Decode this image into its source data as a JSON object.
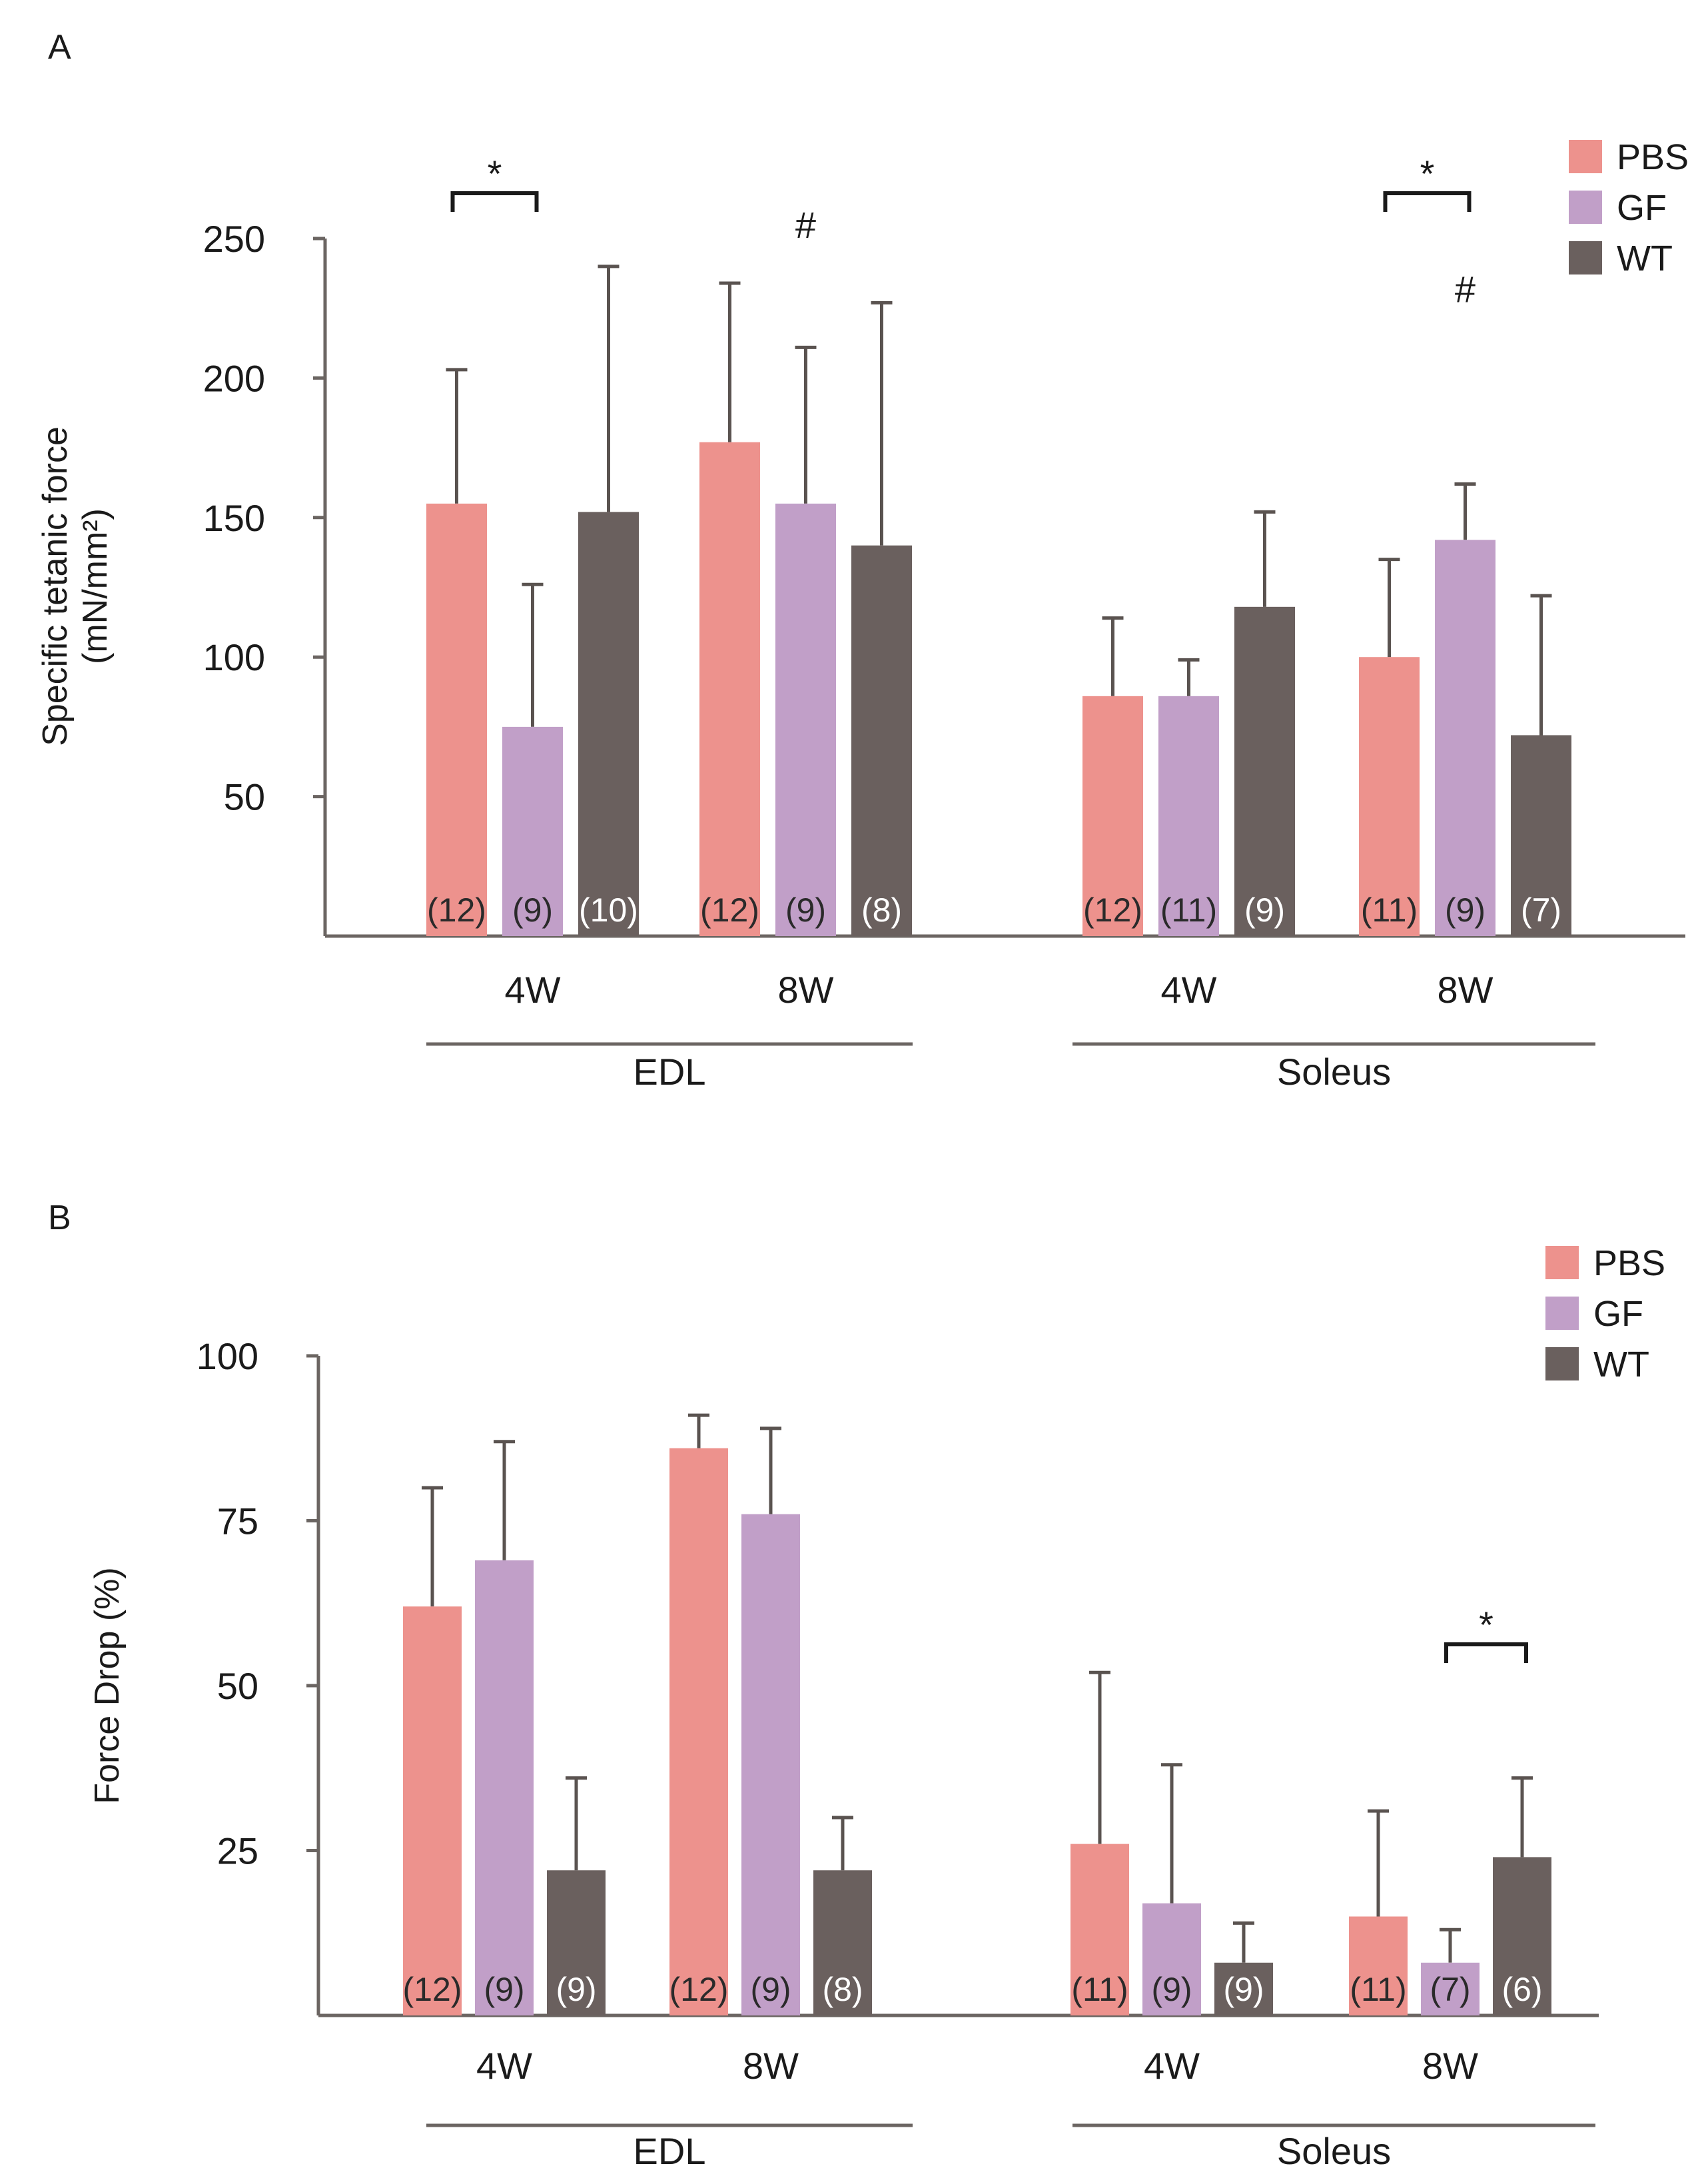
{
  "legend": [
    {
      "name": "PBS",
      "color": "#ED928D"
    },
    {
      "name": "GF",
      "color": "#C19FC8"
    },
    {
      "name": "WT",
      "color": "#6A605E"
    }
  ],
  "chart_data": [
    {
      "panel": "A",
      "type": "bar",
      "ylabel_line1": "Specific tetanic force",
      "ylabel_line2": "(mN/mm²)",
      "ylim": [
        0,
        250
      ],
      "yticks": [
        50,
        100,
        150,
        200,
        250
      ],
      "tissues": [
        {
          "name": "EDL",
          "timepoints": [
            {
              "label": "4W",
              "bars": [
                {
                  "series": "PBS",
                  "value": 155,
                  "error": 48,
                  "n": "(12)"
                },
                {
                  "series": "GF",
                  "value": 75,
                  "error": 51,
                  "n": "(9)"
                },
                {
                  "series": "WT",
                  "value": 152,
                  "error": 88,
                  "n": "(10)"
                }
              ],
              "sig": [
                {
                  "type": "bracket",
                  "from": "PBS",
                  "to": "GF",
                  "label": "*"
                }
              ]
            },
            {
              "label": "8W",
              "bars": [
                {
                  "series": "PBS",
                  "value": 177,
                  "error": 57,
                  "n": "(12)"
                },
                {
                  "series": "GF",
                  "value": 155,
                  "error": 56,
                  "n": "(9)"
                },
                {
                  "series": "WT",
                  "value": 140,
                  "error": 87,
                  "n": "(8)"
                }
              ],
              "sig": [
                {
                  "type": "mark",
                  "over": "GF",
                  "label": "#",
                  "at": 255
                }
              ]
            }
          ]
        },
        {
          "name": "Soleus",
          "timepoints": [
            {
              "label": "4W",
              "bars": [
                {
                  "series": "PBS",
                  "value": 86,
                  "error": 28,
                  "n": "(12)"
                },
                {
                  "series": "GF",
                  "value": 86,
                  "error": 13,
                  "n": "(11)"
                },
                {
                  "series": "WT",
                  "value": 118,
                  "error": 34,
                  "n": "(9)"
                }
              ],
              "sig": []
            },
            {
              "label": "8W",
              "bars": [
                {
                  "series": "PBS",
                  "value": 100,
                  "error": 35,
                  "n": "(11)"
                },
                {
                  "series": "GF",
                  "value": 142,
                  "error": 20,
                  "n": "(9)"
                },
                {
                  "series": "WT",
                  "value": 72,
                  "error": 50,
                  "n": "(7)"
                }
              ],
              "sig": [
                {
                  "type": "bracket",
                  "from": "PBS",
                  "to": "GF",
                  "label": "*"
                },
                {
                  "type": "mark",
                  "over": "GF",
                  "label": "#",
                  "at": 232
                }
              ]
            }
          ]
        }
      ]
    },
    {
      "panel": "B",
      "type": "bar",
      "ylabel_line1": "Force Drop (%)",
      "ylabel_line2": "",
      "ylim": [
        0,
        100
      ],
      "yticks": [
        25,
        50,
        75,
        100
      ],
      "tissues": [
        {
          "name": "EDL",
          "timepoints": [
            {
              "label": "4W",
              "bars": [
                {
                  "series": "PBS",
                  "value": 62,
                  "error": 18,
                  "n": "(12)"
                },
                {
                  "series": "GF",
                  "value": 69,
                  "error": 18,
                  "n": "(9)"
                },
                {
                  "series": "WT",
                  "value": 22,
                  "error": 14,
                  "n": "(9)"
                }
              ],
              "sig": []
            },
            {
              "label": "8W",
              "bars": [
                {
                  "series": "PBS",
                  "value": 86,
                  "error": 5,
                  "n": "(12)"
                },
                {
                  "series": "GF",
                  "value": 76,
                  "error": 13,
                  "n": "(9)"
                },
                {
                  "series": "WT",
                  "value": 22,
                  "error": 8,
                  "n": "(8)"
                }
              ],
              "sig": []
            }
          ]
        },
        {
          "name": "Soleus",
          "timepoints": [
            {
              "label": "4W",
              "bars": [
                {
                  "series": "PBS",
                  "value": 26,
                  "error": 26,
                  "n": "(11)"
                },
                {
                  "series": "GF",
                  "value": 17,
                  "error": 21,
                  "n": "(9)"
                },
                {
                  "series": "WT",
                  "value": 8,
                  "error": 6,
                  "n": "(9)"
                }
              ],
              "sig": []
            },
            {
              "label": "8W",
              "bars": [
                {
                  "series": "PBS",
                  "value": 15,
                  "error": 16,
                  "n": "(11)"
                },
                {
                  "series": "GF",
                  "value": 8,
                  "error": 5,
                  "n": "(7)"
                },
                {
                  "series": "WT",
                  "value": 24,
                  "error": 12,
                  "n": "(6)"
                }
              ],
              "sig": [
                {
                  "type": "bracket",
                  "from": "GF",
                  "to": "WT",
                  "label": "*"
                }
              ]
            }
          ]
        }
      ]
    }
  ]
}
